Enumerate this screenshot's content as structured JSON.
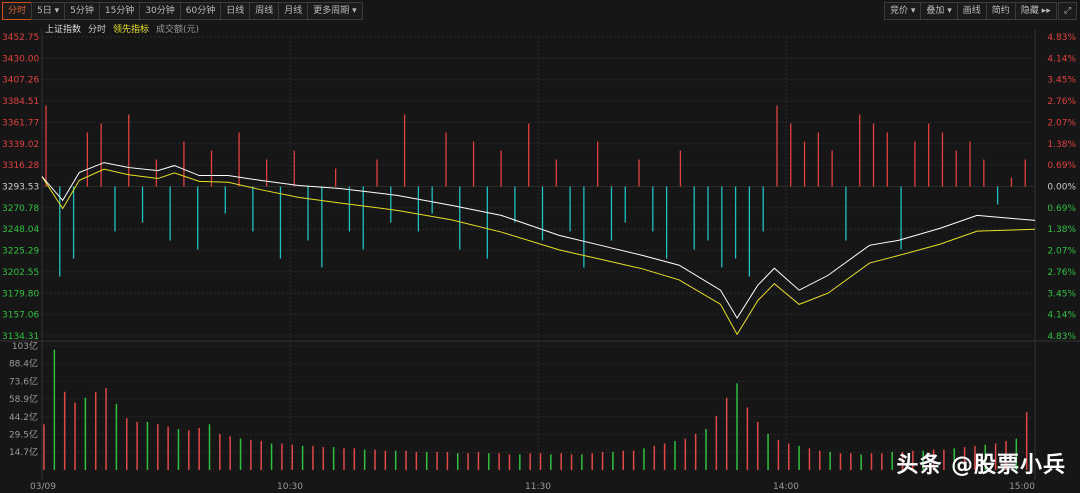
{
  "toolbar_left": [
    "分时",
    "5日 ▾",
    "5分钟",
    "15分钟",
    "30分钟",
    "60分钟",
    "日线",
    "周线",
    "月线",
    "更多周期 ▾"
  ],
  "toolbar_right": [
    "竞价 ▾",
    "叠加 ▾",
    "画线",
    "简约",
    "隐藏 ▸▸"
  ],
  "legend": {
    "index": "上证指数",
    "mode": "分时",
    "leading": "领先指标",
    "volume": "成交额(元)"
  },
  "watermark": "头条 @股票小兵",
  "colors": {
    "up": "#e04040",
    "down": "#20c0c0",
    "price": "#ffffff",
    "leading": "#e8e020",
    "vol_up": "#e04848",
    "vol_down": "#30c040",
    "bg": "#161616"
  },
  "chart_data": {
    "type": "line",
    "prev_close": 3293.53,
    "price_ticks": [
      "3452.75",
      "3430.00",
      "3407.26",
      "3384.51",
      "3361.77",
      "3339.02",
      "3316.28",
      "3293.53",
      "3270.78",
      "3248.04",
      "3225.29",
      "3202.55",
      "3179.80",
      "3157.06",
      "3134.31"
    ],
    "pct_ticks": [
      "4.83%",
      "4.14%",
      "3.45%",
      "2.76%",
      "2.07%",
      "1.38%",
      "0.69%",
      "0.00%",
      "0.69%",
      "1.38%",
      "2.07%",
      "2.76%",
      "3.45%",
      "4.14%",
      "4.83%"
    ],
    "ylim": [
      3134.31,
      3452.75
    ],
    "vol_ticks": [
      "103亿",
      "88.4亿",
      "73.6亿",
      "58.9亿",
      "44.2亿",
      "29.5亿",
      "14.7亿"
    ],
    "vol_ylim": [
      0,
      103
    ],
    "time_ticks": [
      "03/09",
      "10:30",
      "11:30",
      "14:00",
      "15:00"
    ],
    "price_series": [
      [
        "09:30",
        3304.1
      ],
      [
        "09:35",
        3278.7
      ],
      [
        "09:39",
        3308.4
      ],
      [
        "09:45",
        3319.0
      ],
      [
        "09:51",
        3313.7
      ],
      [
        "09:58",
        3310.5
      ],
      [
        "10:02",
        3315.8
      ],
      [
        "10:08",
        3305.2
      ],
      [
        "10:15",
        3305.2
      ],
      [
        "10:23",
        3299.9
      ],
      [
        "10:32",
        3294.6
      ],
      [
        "10:42",
        3291.4
      ],
      [
        "10:56",
        3284.0
      ],
      [
        "11:09",
        3273.4
      ],
      [
        "11:21",
        3262.8
      ],
      [
        "13:05",
        3241.5
      ],
      [
        "13:15",
        3230.9
      ],
      [
        "13:25",
        3220.3
      ],
      [
        "13:34",
        3209.7
      ],
      [
        "13:44",
        3183.1
      ],
      [
        "13:48",
        3153.4
      ],
      [
        "13:53",
        3188.4
      ],
      [
        "13:57",
        3206.5
      ],
      [
        "14:03",
        3183.1
      ],
      [
        "14:10",
        3199.0
      ],
      [
        "14:20",
        3230.9
      ],
      [
        "14:27",
        3236.2
      ],
      [
        "14:37",
        3248.9
      ],
      [
        "14:46",
        3262.8
      ],
      [
        "15:00",
        3257.4
      ]
    ],
    "leading_series": [
      [
        "09:30",
        3304.1
      ],
      [
        "09:35",
        3270.0
      ],
      [
        "09:39",
        3300.0
      ],
      [
        "09:45",
        3312.0
      ],
      [
        "09:51",
        3306.0
      ],
      [
        "09:58",
        3302.0
      ],
      [
        "10:02",
        3308.0
      ],
      [
        "10:08",
        3299.0
      ],
      [
        "10:15",
        3298.0
      ],
      [
        "10:23",
        3290.0
      ],
      [
        "10:32",
        3282.0
      ],
      [
        "10:42",
        3276.0
      ],
      [
        "10:56",
        3268.0
      ],
      [
        "11:09",
        3258.0
      ],
      [
        "11:21",
        3245.0
      ],
      [
        "13:05",
        3226.0
      ],
      [
        "13:15",
        3216.0
      ],
      [
        "13:25",
        3206.0
      ],
      [
        "13:34",
        3194.0
      ],
      [
        "13:44",
        3168.0
      ],
      [
        "13:48",
        3136.0
      ],
      [
        "13:53",
        3172.0
      ],
      [
        "13:57",
        3190.0
      ],
      [
        "14:03",
        3168.0
      ],
      [
        "14:10",
        3180.0
      ],
      [
        "14:20",
        3212.0
      ],
      [
        "14:27",
        3220.0
      ],
      [
        "14:37",
        3232.0
      ],
      [
        "14:46",
        3246.0
      ],
      [
        "15:00",
        3248.0
      ]
    ],
    "strength_bars": [
      9,
      -10,
      -8,
      6,
      7,
      -5,
      8,
      -4,
      3,
      -6,
      5,
      -7,
      4,
      -3,
      6,
      -5,
      3,
      -8,
      4,
      -6,
      -9,
      2,
      -5,
      -7,
      3,
      -4,
      8,
      -5,
      -3,
      6,
      -7,
      5,
      -8,
      4,
      -4,
      7,
      -6,
      3,
      -5,
      -9,
      5,
      -6,
      -4,
      3,
      -5,
      -8,
      4,
      -7,
      -6,
      -9,
      -8,
      -10,
      -5,
      9,
      7,
      5,
      6,
      4,
      -6,
      8,
      7,
      6,
      -7,
      5,
      7,
      6,
      4,
      5,
      3,
      -2,
      1,
      3
    ],
    "volume": [
      38,
      100,
      65,
      56,
      60,
      65,
      68,
      55,
      43,
      40,
      40,
      38,
      36,
      34,
      33,
      35,
      38,
      30,
      28,
      26,
      25,
      24,
      22,
      22,
      21,
      20,
      20,
      19,
      19,
      18,
      18,
      17,
      17,
      16,
      16,
      16,
      15,
      15,
      15,
      15,
      14,
      14,
      15,
      14,
      14,
      13,
      13,
      14,
      14,
      13,
      14,
      13,
      13,
      14,
      15,
      15,
      16,
      16,
      18,
      20,
      22,
      24,
      26,
      30,
      34,
      45,
      60,
      72,
      52,
      40,
      30,
      25,
      22,
      20,
      18,
      16,
      15,
      14,
      14,
      13,
      14,
      14,
      15,
      15,
      16,
      16,
      17,
      17,
      18,
      19,
      20,
      21,
      22,
      24,
      26,
      48
    ]
  }
}
